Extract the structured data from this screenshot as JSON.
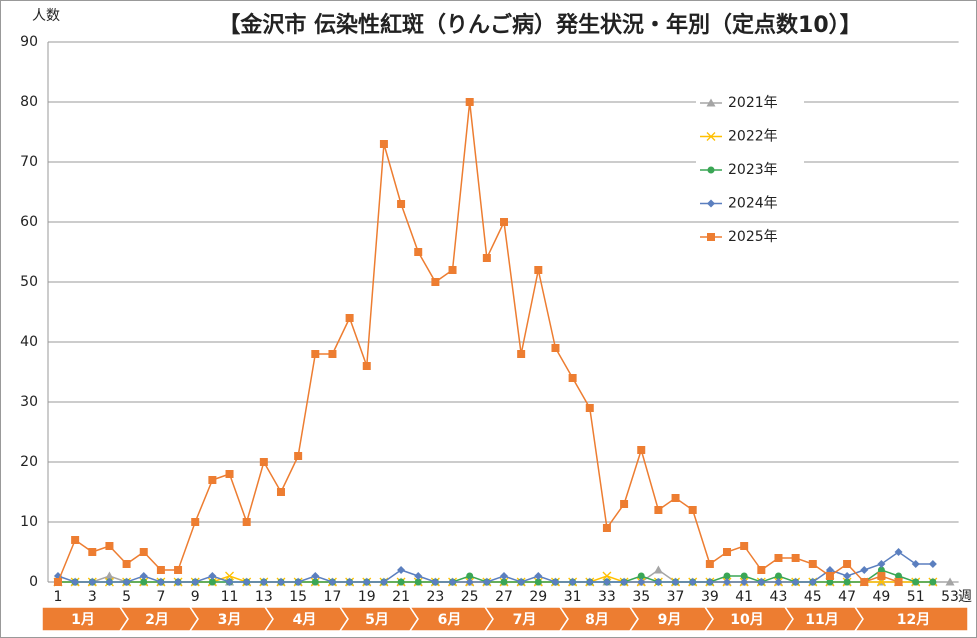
{
  "chart_data": {
    "type": "line",
    "title": "【金沢市 伝染性紅斑（りんご病）発生状況・年別（定点数10）】",
    "y_label": "人数",
    "x_unit_label": "週",
    "categories": [
      "1",
      null,
      "3",
      null,
      "5",
      null,
      "7",
      null,
      "9",
      null,
      "11",
      null,
      "13",
      null,
      "15",
      null,
      "17",
      null,
      "19",
      null,
      "21",
      null,
      "23",
      null,
      "25",
      null,
      "27",
      null,
      "29",
      null,
      "31",
      null,
      "33",
      null,
      "35",
      null,
      "37",
      null,
      "39",
      null,
      "41",
      null,
      "43",
      null,
      "45",
      null,
      "47",
      null,
      "49",
      null,
      "51",
      null,
      "53"
    ],
    "months": [
      "1月",
      "2月",
      "3月",
      "4月",
      "5月",
      "6月",
      "7月",
      "8月",
      "9月",
      "10月",
      "11月",
      "12月"
    ],
    "ylim": [
      0,
      90
    ],
    "yticks": [
      0,
      10,
      20,
      30,
      40,
      50,
      60,
      70,
      80,
      90
    ],
    "grid": true,
    "series": [
      {
        "name": "2021年",
        "color": "#a5a5a5",
        "marker": "triangle",
        "values": [
          0,
          0,
          0,
          1,
          0,
          0,
          0,
          0,
          0,
          0,
          0,
          0,
          0,
          0,
          0,
          0,
          0,
          0,
          0,
          0,
          0,
          0,
          0,
          0,
          0,
          0,
          0,
          0,
          0,
          0,
          0,
          0,
          0,
          0,
          0,
          2,
          0,
          0,
          0,
          0,
          0,
          0,
          0,
          0,
          0,
          0,
          0,
          0,
          0,
          0,
          0,
          0,
          0
        ]
      },
      {
        "name": "2022年",
        "color": "#ffc000",
        "marker": "x",
        "values": [
          0,
          0,
          0,
          0,
          0,
          0,
          0,
          0,
          0,
          0,
          1,
          0,
          0,
          0,
          0,
          0,
          0,
          0,
          0,
          0,
          0,
          0,
          0,
          0,
          0,
          0,
          0,
          0,
          0,
          0,
          0,
          0,
          1,
          0,
          0,
          0,
          0,
          0,
          0,
          0,
          0,
          0,
          0,
          0,
          0,
          0,
          0,
          0,
          0,
          0,
          0,
          0,
          null
        ]
      },
      {
        "name": "2023年",
        "color": "#3aa655",
        "marker": "circle",
        "values": [
          0,
          0,
          0,
          0,
          0,
          0,
          0,
          0,
          0,
          0,
          0,
          0,
          0,
          0,
          0,
          0,
          0,
          0,
          0,
          0,
          0,
          0,
          0,
          0,
          1,
          0,
          0,
          0,
          0,
          0,
          0,
          0,
          0,
          0,
          1,
          0,
          0,
          0,
          0,
          1,
          1,
          0,
          1,
          0,
          0,
          0,
          0,
          0,
          2,
          1,
          0,
          0,
          null
        ]
      },
      {
        "name": "2024年",
        "color": "#5b7fbf",
        "marker": "diamond",
        "values": [
          1,
          0,
          0,
          0,
          0,
          1,
          0,
          0,
          0,
          1,
          0,
          0,
          0,
          0,
          0,
          1,
          0,
          0,
          0,
          0,
          2,
          1,
          0,
          0,
          0,
          0,
          1,
          0,
          1,
          0,
          0,
          0,
          0,
          0,
          0,
          0,
          0,
          0,
          0,
          0,
          0,
          0,
          0,
          0,
          0,
          2,
          1,
          2,
          3,
          5,
          3,
          3,
          null
        ]
      },
      {
        "name": "2025年",
        "color": "#ed7d31",
        "marker": "square",
        "values": [
          0,
          7,
          5,
          6,
          3,
          5,
          2,
          2,
          10,
          17,
          18,
          10,
          20,
          15,
          21,
          38,
          38,
          44,
          36,
          73,
          63,
          55,
          50,
          52,
          80,
          54,
          60,
          38,
          52,
          39,
          34,
          29,
          9,
          13,
          22,
          12,
          14,
          12,
          3,
          5,
          6,
          2,
          4,
          4,
          3,
          1,
          3,
          0,
          1,
          0,
          null,
          null,
          null
        ]
      }
    ]
  }
}
